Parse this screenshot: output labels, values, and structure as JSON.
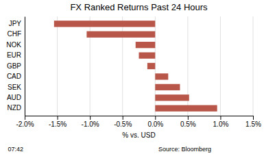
{
  "chart_data": {
    "type": "bar",
    "orientation": "horizontal",
    "title": "FX Ranked Returns Past 24 Hours",
    "categories": [
      "JPY",
      "CHF",
      "NOK",
      "EUR",
      "GBP",
      "CAD",
      "SEK",
      "AUD",
      "NZD"
    ],
    "values": [
      -1.55,
      -1.05,
      -0.3,
      -0.25,
      -0.12,
      0.2,
      0.38,
      0.52,
      0.95
    ],
    "color": "#b8564a",
    "xlim": [
      -2.0,
      1.5
    ],
    "xticks": [
      {
        "value": -2.0,
        "label": "-2.0%"
      },
      {
        "value": -1.5,
        "label": "-1.5%"
      },
      {
        "value": -1.0,
        "label": "-1.0%"
      },
      {
        "value": -0.5,
        "label": "-0.5%"
      },
      {
        "value": 0.0,
        "label": "0.0%"
      },
      {
        "value": 0.5,
        "label": "0.5%"
      },
      {
        "value": 1.0,
        "label": "1.0%"
      },
      {
        "value": 1.5,
        "label": "1.5%"
      }
    ],
    "xlabel": "% vs. USD",
    "grid": true,
    "annotations": [
      "07:42",
      "Source: Bloomberg"
    ]
  }
}
